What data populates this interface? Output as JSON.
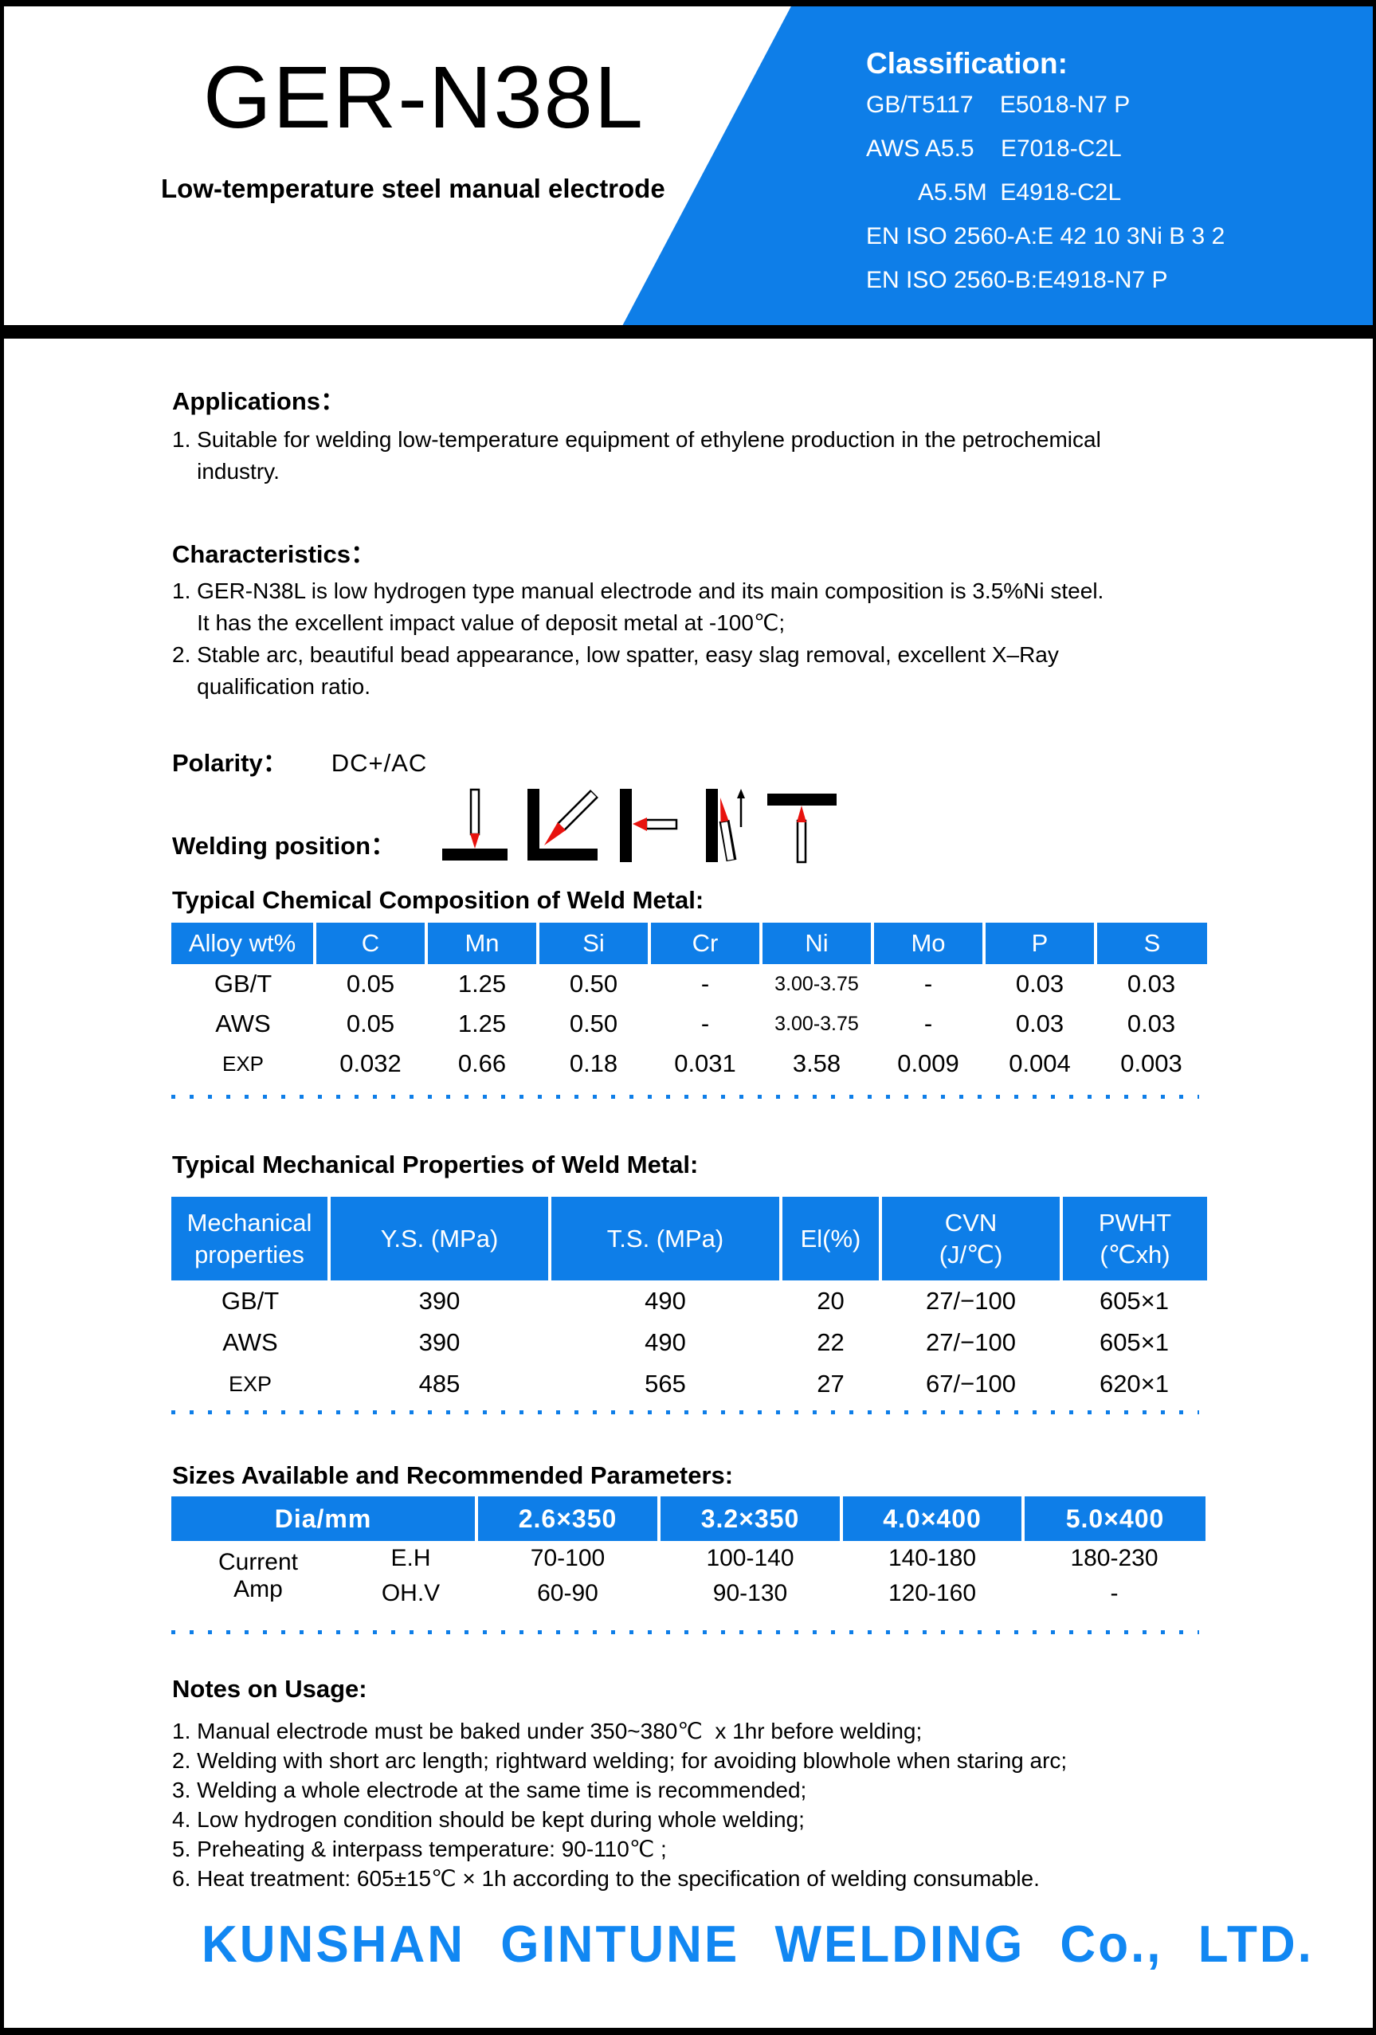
{
  "header": {
    "title": "GER-N38L",
    "subtitle": "Low-temperature steel manual electrode"
  },
  "classification": {
    "heading": "Classification:",
    "lines": [
      "GB/T5117    E5018-N7 P",
      "AWS A5.5    E7018-C2L",
      "        A5.5M  E4918-C2L",
      "EN ISO 2560-A:E 42 10 3Ni B 3 2",
      "EN ISO 2560-B:E4918-N7 P"
    ]
  },
  "applications": {
    "heading": "Applications：",
    "lines": [
      "1. Suitable for welding low-temperature equipment of ethylene production in the petrochemical",
      "    industry."
    ]
  },
  "characteristics": {
    "heading": "Characteristics：",
    "lines": [
      "1. GER-N38L is low hydrogen type manual electrode and its main composition is 3.5%Ni steel.",
      "    It has the excellent impact value of deposit metal at -100℃;",
      "2. Stable arc, beautiful bead appearance, low spatter, easy slag removal, excellent X–Ray",
      "    qualification ratio."
    ]
  },
  "polarity": {
    "label": "Polarity：",
    "value": "DC+/AC"
  },
  "welding_position": {
    "label": "Welding position：",
    "icons": [
      "flat-position-icon",
      "horizontal-fillet-position-icon",
      "horizontal-position-icon",
      "vertical-up-position-icon",
      "overhead-position-icon"
    ]
  },
  "chem": {
    "heading": "Typical Chemical Composition of Weld Metal:",
    "table": {
      "headers": [
        "Alloy wt%",
        "C",
        "Mn",
        "Si",
        "Cr",
        "Ni",
        "Mo",
        "P",
        "S"
      ],
      "rows": [
        {
          "label": "GB/T",
          "values": [
            "0.05",
            "1.25",
            "0.50",
            "-",
            "3.00-3.75",
            "-",
            "0.03",
            "0.03"
          ]
        },
        {
          "label": "AWS",
          "values": [
            "0.05",
            "1.25",
            "0.50",
            "-",
            "3.00-3.75",
            "-",
            "0.03",
            "0.03"
          ]
        },
        {
          "label": "EXP",
          "values": [
            "0.032",
            "0.66",
            "0.18",
            "0.031",
            "3.58",
            "0.009",
            "0.004",
            "0.003"
          ]
        }
      ]
    }
  },
  "mech": {
    "heading": "Typical Mechanical Properties of Weld Metal:",
    "table": {
      "headers": [
        "Mechanical\nproperties",
        "Y.S. (MPa)",
        "T.S. (MPa)",
        "El(%)",
        "CVN\n(J/℃)",
        "PWHT\n(℃xh)"
      ],
      "rows": [
        {
          "label": "GB/T",
          "values": [
            "390",
            "490",
            "20",
            "27/−100",
            "605×1"
          ]
        },
        {
          "label": "AWS",
          "values": [
            "390",
            "490",
            "22",
            "27/−100",
            "605×1"
          ]
        },
        {
          "label": "EXP",
          "values": [
            "485",
            "565",
            "27",
            "67/−100",
            "620×1"
          ]
        }
      ]
    }
  },
  "sizes": {
    "heading": "Sizes Available and Recommended Parameters:",
    "table": {
      "headers": [
        "Dia/mm",
        "2.6×350",
        "3.2×350",
        "4.0×400",
        "5.0×400"
      ],
      "row_group_label": [
        "Current",
        "Amp"
      ],
      "rows": [
        {
          "label": "E.H",
          "values": [
            "70-100",
            "100-140",
            "140-180",
            "180-230"
          ]
        },
        {
          "label": "OH.V",
          "values": [
            "60-90",
            "90-130",
            "120-160",
            "-"
          ]
        }
      ]
    }
  },
  "notes": {
    "heading": "Notes on Usage:",
    "lines": [
      "1. Manual electrode must be baked under 350~380℃  x 1hr before welding;",
      "2. Welding with short arc length; rightward welding; for avoiding blowhole when staring arc;",
      "3. Welding a whole electrode at the same time is recommended;",
      "4. Low hydrogen condition should be kept during whole welding;",
      "5. Preheating & interpass temperature: 90-110℃ ;",
      "6. Heat treatment: 605±15℃ × 1h according to the specification of welding consumable."
    ]
  },
  "footer": {
    "company": "KUNSHAN GINTUNE WELDING Co., LTD."
  },
  "colors": {
    "accent_blue": "#0e7ee8",
    "logo_blue": "#1187f2",
    "electrode_red": "#e8120e"
  }
}
